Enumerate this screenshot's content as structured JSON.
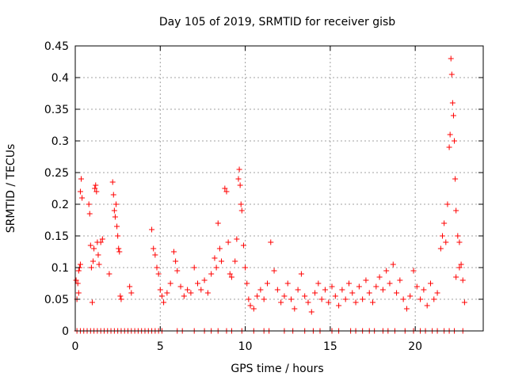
{
  "chart_data": {
    "type": "scatter",
    "title": "Day 105 of 2019, SRMTID for receiver gisb",
    "xlabel": "GPS time / hours",
    "ylabel": "SRMTID / TECUs",
    "xlim": [
      0,
      24
    ],
    "ylim": [
      0,
      0.45
    ],
    "grid": true,
    "marker": "+",
    "color": "#ff0000",
    "x_ticks": [
      0,
      5,
      10,
      15,
      20
    ],
    "x_tick_labels": [
      "0",
      "5",
      "10",
      "15",
      "20"
    ],
    "y_ticks": [
      0,
      0.05,
      0.1,
      0.15,
      0.2,
      0.25,
      0.3,
      0.35,
      0.4,
      0.45
    ],
    "y_tick_labels": [
      "0",
      "0.05",
      "0.1",
      "0.15",
      "0.2",
      "0.25",
      "0.3",
      "0.35",
      "0.4",
      "0.45"
    ],
    "points": [
      [
        0.05,
        0.08
      ],
      [
        0.1,
        0.05
      ],
      [
        0.15,
        0.075
      ],
      [
        0.2,
        0.06
      ],
      [
        0.25,
        0.1
      ],
      [
        0.3,
        0.22
      ],
      [
        0.35,
        0.24
      ],
      [
        0.4,
        0.21
      ],
      [
        0.3,
        0.105
      ],
      [
        0.2,
        0.095
      ],
      [
        0.8,
        0.2
      ],
      [
        0.85,
        0.185
      ],
      [
        0.9,
        0.135
      ],
      [
        0.95,
        0.1
      ],
      [
        1.0,
        0.045
      ],
      [
        1.05,
        0.11
      ],
      [
        1.1,
        0.13
      ],
      [
        1.15,
        0.225
      ],
      [
        1.2,
        0.23
      ],
      [
        1.25,
        0.22
      ],
      [
        1.3,
        0.14
      ],
      [
        1.35,
        0.12
      ],
      [
        1.4,
        0.105
      ],
      [
        1.5,
        0.14
      ],
      [
        1.6,
        0.145
      ],
      [
        2.0,
        0.09
      ],
      [
        2.2,
        0.235
      ],
      [
        2.25,
        0.215
      ],
      [
        2.3,
        0.19
      ],
      [
        2.35,
        0.18
      ],
      [
        2.4,
        0.2
      ],
      [
        2.45,
        0.165
      ],
      [
        2.5,
        0.15
      ],
      [
        2.55,
        0.13
      ],
      [
        2.6,
        0.125
      ],
      [
        2.65,
        0.055
      ],
      [
        2.7,
        0.05
      ],
      [
        3.2,
        0.07
      ],
      [
        3.3,
        0.06
      ],
      [
        4.5,
        0.16
      ],
      [
        4.6,
        0.13
      ],
      [
        4.7,
        0.12
      ],
      [
        4.8,
        0.1
      ],
      [
        4.9,
        0.09
      ],
      [
        5.0,
        0.065
      ],
      [
        5.1,
        0.055
      ],
      [
        5.2,
        0.045
      ],
      [
        5.4,
        0.06
      ],
      [
        5.6,
        0.075
      ],
      [
        5.8,
        0.125
      ],
      [
        5.9,
        0.11
      ],
      [
        6.0,
        0.095
      ],
      [
        6.2,
        0.07
      ],
      [
        6.4,
        0.055
      ],
      [
        6.6,
        0.065
      ],
      [
        6.8,
        0.06
      ],
      [
        7.0,
        0.1
      ],
      [
        7.2,
        0.075
      ],
      [
        7.4,
        0.065
      ],
      [
        7.6,
        0.08
      ],
      [
        7.8,
        0.06
      ],
      [
        8.0,
        0.09
      ],
      [
        8.2,
        0.115
      ],
      [
        8.3,
        0.1
      ],
      [
        8.4,
        0.17
      ],
      [
        8.5,
        0.13
      ],
      [
        8.6,
        0.11
      ],
      [
        8.8,
        0.225
      ],
      [
        8.9,
        0.22
      ],
      [
        9.0,
        0.14
      ],
      [
        9.1,
        0.09
      ],
      [
        9.2,
        0.085
      ],
      [
        9.4,
        0.11
      ],
      [
        9.5,
        0.145
      ],
      [
        9.6,
        0.24
      ],
      [
        9.65,
        0.255
      ],
      [
        9.7,
        0.23
      ],
      [
        9.75,
        0.2
      ],
      [
        9.8,
        0.19
      ],
      [
        9.9,
        0.135
      ],
      [
        10.0,
        0.1
      ],
      [
        10.1,
        0.075
      ],
      [
        10.2,
        0.05
      ],
      [
        10.3,
        0.04
      ],
      [
        10.5,
        0.035
      ],
      [
        10.7,
        0.055
      ],
      [
        10.9,
        0.065
      ],
      [
        11.1,
        0.05
      ],
      [
        11.3,
        0.075
      ],
      [
        11.5,
        0.14
      ],
      [
        11.7,
        0.095
      ],
      [
        11.9,
        0.065
      ],
      [
        12.1,
        0.045
      ],
      [
        12.3,
        0.055
      ],
      [
        12.5,
        0.075
      ],
      [
        12.7,
        0.05
      ],
      [
        12.9,
        0.035
      ],
      [
        13.1,
        0.065
      ],
      [
        13.3,
        0.09
      ],
      [
        13.5,
        0.055
      ],
      [
        13.7,
        0.045
      ],
      [
        13.9,
        0.03
      ],
      [
        14.1,
        0.06
      ],
      [
        14.3,
        0.075
      ],
      [
        14.5,
        0.05
      ],
      [
        14.7,
        0.065
      ],
      [
        14.9,
        0.045
      ],
      [
        15.1,
        0.07
      ],
      [
        15.3,
        0.055
      ],
      [
        15.5,
        0.04
      ],
      [
        15.7,
        0.065
      ],
      [
        15.9,
        0.05
      ],
      [
        16.1,
        0.075
      ],
      [
        16.3,
        0.06
      ],
      [
        16.5,
        0.045
      ],
      [
        16.7,
        0.07
      ],
      [
        16.9,
        0.05
      ],
      [
        17.1,
        0.08
      ],
      [
        17.3,
        0.06
      ],
      [
        17.5,
        0.045
      ],
      [
        17.7,
        0.07
      ],
      [
        17.9,
        0.085
      ],
      [
        18.1,
        0.065
      ],
      [
        18.3,
        0.095
      ],
      [
        18.5,
        0.075
      ],
      [
        18.7,
        0.105
      ],
      [
        18.9,
        0.06
      ],
      [
        19.1,
        0.08
      ],
      [
        19.3,
        0.05
      ],
      [
        19.5,
        0.035
      ],
      [
        19.7,
        0.055
      ],
      [
        19.9,
        0.095
      ],
      [
        20.1,
        0.07
      ],
      [
        20.3,
        0.05
      ],
      [
        20.5,
        0.065
      ],
      [
        20.7,
        0.04
      ],
      [
        20.9,
        0.075
      ],
      [
        21.1,
        0.05
      ],
      [
        21.3,
        0.06
      ],
      [
        21.5,
        0.13
      ],
      [
        21.6,
        0.15
      ],
      [
        21.7,
        0.17
      ],
      [
        21.8,
        0.14
      ],
      [
        21.9,
        0.2
      ],
      [
        22.0,
        0.29
      ],
      [
        22.05,
        0.31
      ],
      [
        22.1,
        0.43
      ],
      [
        22.15,
        0.405
      ],
      [
        22.2,
        0.36
      ],
      [
        22.25,
        0.34
      ],
      [
        22.3,
        0.3
      ],
      [
        22.35,
        0.24
      ],
      [
        22.4,
        0.19
      ],
      [
        22.5,
        0.15
      ],
      [
        22.6,
        0.14
      ],
      [
        22.7,
        0.105
      ],
      [
        22.8,
        0.08
      ],
      [
        22.9,
        0.045
      ],
      [
        22.6,
        0.1
      ],
      [
        22.4,
        0.085
      ]
    ],
    "zero_points_x": [
      0.1,
      0.3,
      0.5,
      0.7,
      0.9,
      1.1,
      1.3,
      1.5,
      1.7,
      1.9,
      2.1,
      2.3,
      2.5,
      2.7,
      2.9,
      3.1,
      3.3,
      3.5,
      3.7,
      3.9,
      4.1,
      4.3,
      4.5,
      4.7,
      4.9,
      5.1,
      6.0,
      6.3,
      7.0,
      7.6,
      8.0,
      8.4,
      8.9,
      9.2,
      9.8,
      10.5,
      11.1,
      11.4,
      12.3,
      12.8,
      13.5,
      14.0,
      14.4,
      15.1,
      15.5,
      16.2,
      16.5,
      16.9,
      17.3,
      17.6,
      18.1,
      18.4,
      18.8,
      19.4,
      19.9,
      20.3,
      20.6,
      21.0,
      21.3,
      21.7,
      22.0,
      22.3,
      22.8
    ]
  }
}
